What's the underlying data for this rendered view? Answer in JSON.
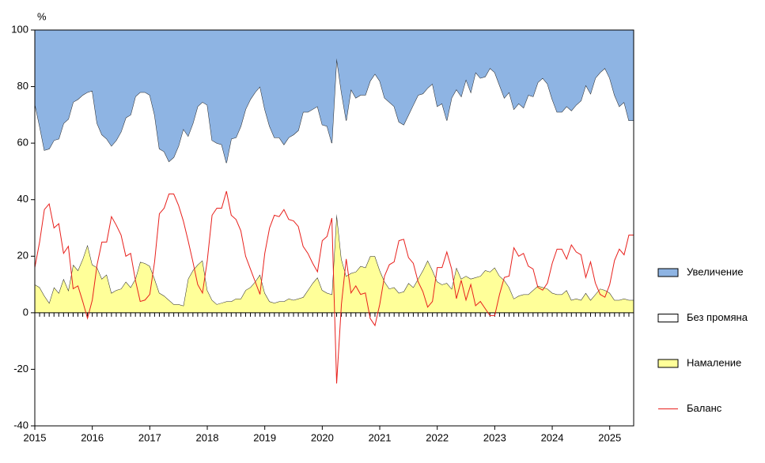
{
  "chart_data": {
    "type": "stacked_area",
    "y_label": "%",
    "categories": [
      "2015",
      null,
      null,
      null,
      null,
      null,
      null,
      null,
      null,
      null,
      null,
      null,
      "2016",
      null,
      null,
      null,
      null,
      null,
      null,
      null,
      null,
      null,
      null,
      null,
      "2017",
      null,
      null,
      null,
      null,
      null,
      null,
      null,
      null,
      null,
      null,
      null,
      "2018",
      null,
      null,
      null,
      null,
      null,
      null,
      null,
      null,
      null,
      null,
      null,
      "2019",
      null,
      null,
      null,
      null,
      null,
      null,
      null,
      null,
      null,
      null,
      null,
      "2020",
      null,
      null,
      null,
      null,
      null,
      null,
      null,
      null,
      null,
      null,
      null,
      "2021",
      null,
      null,
      null,
      null,
      null,
      null,
      null,
      null,
      null,
      null,
      null,
      "2022",
      null,
      null,
      null,
      null,
      null,
      null,
      null,
      null,
      null,
      null,
      null,
      "2023",
      null,
      null,
      null,
      null,
      null,
      null,
      null,
      null,
      null,
      null,
      null,
      "2024",
      null,
      null,
      null,
      null,
      null,
      null,
      null,
      null,
      null,
      null,
      null,
      "2025",
      null,
      null,
      null,
      null,
      null
    ],
    "ylim": [
      -40,
      100
    ],
    "yticks": [
      -40,
      -20,
      0,
      20,
      40,
      60,
      80,
      100
    ],
    "legend": "right",
    "series": [
      {
        "name": "Намаление",
        "color": "#ffff99",
        "kind": "area",
        "values": [
          10,
          9,
          6,
          3.5,
          9,
          7,
          12,
          8,
          17,
          15,
          19,
          24,
          17,
          16,
          12,
          13.5,
          7,
          8,
          8.5,
          11,
          9,
          12,
          18,
          17.5,
          16.5,
          12,
          7,
          6,
          4.5,
          3,
          3,
          2.5,
          12,
          15,
          17,
          18.5,
          8,
          4.5,
          3,
          3.5,
          4,
          4,
          5,
          5,
          8,
          9,
          11,
          13.5,
          7,
          4,
          3.5,
          4,
          4,
          5,
          4.5,
          5,
          5.5,
          8,
          10.5,
          12.5,
          8,
          7,
          6.5,
          35,
          19,
          13,
          14,
          14.5,
          16.5,
          16,
          20,
          20,
          15,
          11,
          8.5,
          9,
          7,
          7.5,
          10.5,
          9,
          12,
          15,
          18.5,
          15,
          11,
          10,
          10.5,
          8.5,
          16,
          12,
          13,
          12,
          12.5,
          13,
          15,
          14.5,
          16,
          13,
          11.5,
          9,
          5,
          6,
          6.5,
          6.5,
          8,
          9.5,
          9,
          8.5,
          7,
          6.5,
          6.5,
          8,
          4.5,
          5,
          4.5,
          7,
          4.5,
          6.5,
          8.5,
          8,
          7,
          4.5,
          4.5,
          5,
          4.5,
          4.5
        ]
      },
      {
        "name": "Без промяна",
        "color": "#ffffff",
        "kind": "area",
        "values": [
          64,
          57,
          51.5,
          54.5,
          52,
          54.5,
          55,
          60.5,
          57.5,
          60.5,
          58,
          54,
          61.5,
          51,
          51,
          48,
          52,
          53,
          55.5,
          58,
          61,
          64.5,
          60,
          60.5,
          60.5,
          58,
          51,
          51,
          49,
          52,
          56,
          62.5,
          50.5,
          52,
          56,
          56,
          65.5,
          56.5,
          57,
          56,
          49,
          57.5,
          57,
          61,
          64,
          66.5,
          67,
          66.5,
          65,
          62,
          58.5,
          58,
          55.5,
          57,
          58.5,
          59.5,
          65.5,
          63,
          61.5,
          60.5,
          58.5,
          59,
          53.5,
          55,
          59,
          55,
          65,
          61.5,
          60.5,
          61,
          62,
          64.5,
          67,
          65,
          66,
          64,
          60.5,
          59,
          59.5,
          64.5,
          65,
          62.5,
          61,
          66,
          62,
          64,
          57.5,
          67.5,
          63,
          64.5,
          69.5,
          66,
          72.5,
          70,
          68.5,
          72,
          69,
          67.5,
          64.5,
          69,
          67,
          68,
          66,
          70.5,
          68.5,
          72,
          74,
          72.5,
          68.5,
          64.5,
          64.5,
          65,
          67,
          68.5,
          70.5,
          73.5,
          73,
          76.5,
          76.5,
          78.5,
          76,
          72.5,
          68.5,
          69.5,
          63.5,
          63.5
        ]
      },
      {
        "name": "Увеличение",
        "color": "#8eb4e3",
        "kind": "area",
        "values": [
          26,
          34,
          42.5,
          42,
          39,
          38.5,
          33,
          31.5,
          25.5,
          24.5,
          23,
          22,
          21.5,
          33,
          37,
          38.5,
          41,
          39,
          36,
          31,
          30,
          23.5,
          22,
          22,
          23,
          30,
          42,
          43,
          46.5,
          45,
          41,
          35,
          37.5,
          33,
          27,
          25.5,
          26.5,
          39,
          40,
          40.5,
          47,
          38.5,
          38,
          34,
          28,
          24.5,
          22,
          20,
          28,
          34,
          38,
          38,
          40.5,
          38,
          37,
          35.5,
          29,
          29,
          28,
          27,
          33.5,
          34,
          40,
          10,
          22,
          32,
          21,
          24,
          23,
          23,
          18,
          15.5,
          18,
          24,
          25.5,
          27,
          32.5,
          33.5,
          30,
          26.5,
          23,
          22.5,
          20.5,
          19,
          27,
          26,
          32,
          24,
          21,
          23.5,
          17.5,
          22,
          15,
          17,
          16.5,
          13.5,
          15,
          19.5,
          24,
          22,
          28,
          26,
          27.5,
          23,
          23.5,
          18.5,
          17,
          19,
          24.5,
          29,
          29,
          27,
          28.5,
          26.5,
          25,
          19.5,
          22.5,
          17,
          15,
          13.5,
          17,
          23,
          27,
          25.5,
          32,
          32
        ]
      },
      {
        "name": "Баланс",
        "color": "#e8201c",
        "kind": "line",
        "values": [
          16,
          25,
          36.5,
          38.5,
          30,
          31.5,
          21,
          23.5,
          8.5,
          9.5,
          4,
          -2,
          4.5,
          17,
          25,
          25,
          34,
          31,
          27.5,
          20,
          21,
          11.5,
          4,
          4.5,
          6.5,
          18,
          35,
          37,
          42,
          42,
          38,
          32.5,
          25.5,
          18,
          10,
          7,
          18.5,
          34.5,
          37,
          37,
          43,
          34.5,
          33,
          29,
          20,
          15.5,
          11,
          6.5,
          21,
          30,
          34.5,
          34,
          36.5,
          33,
          32.5,
          30.5,
          23.5,
          21,
          17.5,
          14.5,
          25.5,
          27,
          33.5,
          -25,
          3,
          19,
          7,
          9.5,
          6.5,
          7,
          -2,
          -4.5,
          3,
          13,
          17,
          18,
          25.5,
          26,
          19.5,
          17.5,
          11,
          7.5,
          2,
          4,
          16,
          16,
          21.5,
          15.5,
          5,
          11.5,
          4.5,
          10,
          2.5,
          4,
          1.5,
          -1,
          -1,
          6.5,
          12.5,
          13,
          23,
          20,
          21,
          16.5,
          15.5,
          9,
          8,
          10.5,
          17.5,
          22.5,
          22.5,
          19,
          24,
          21.5,
          20.5,
          12.5,
          18,
          10.5,
          6.5,
          5.5,
          10,
          18.5,
          22.5,
          20.5,
          27.5,
          27.5
        ]
      }
    ]
  }
}
